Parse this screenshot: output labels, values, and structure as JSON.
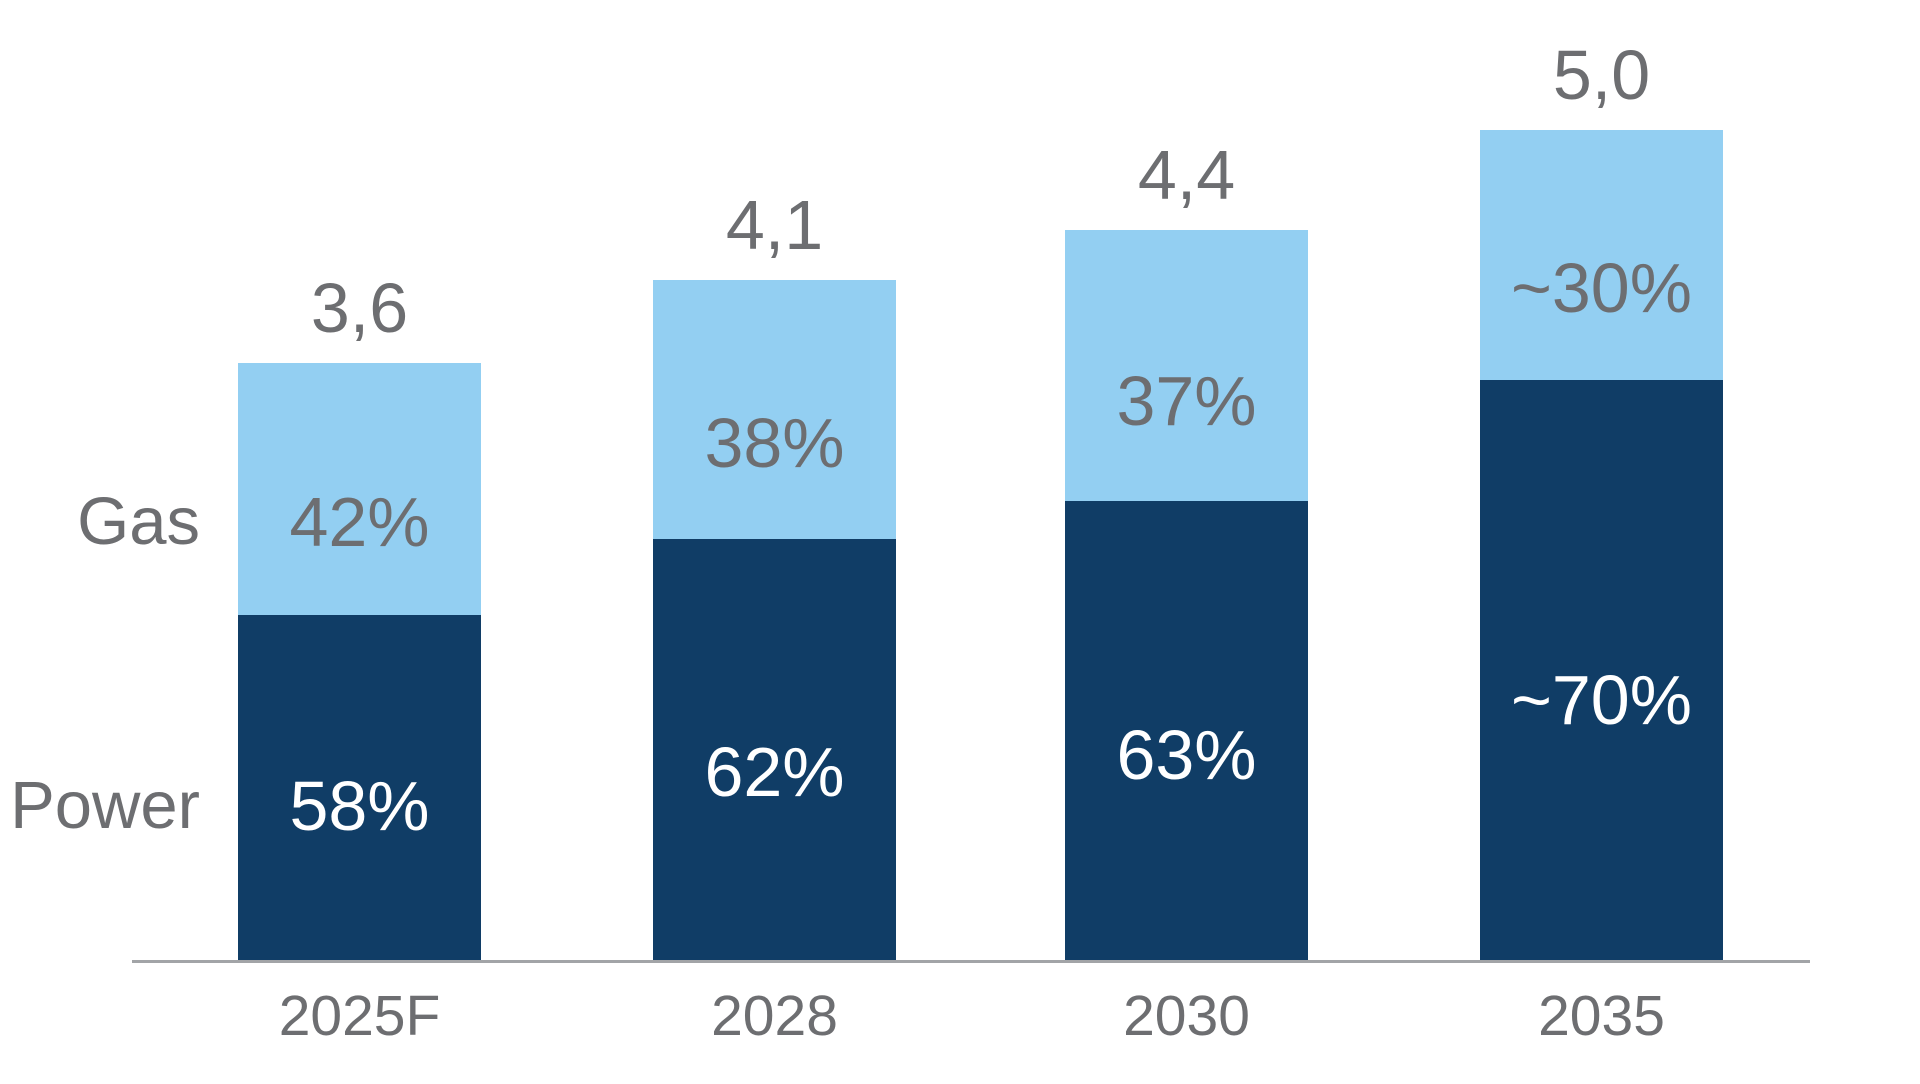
{
  "chart_data": {
    "type": "bar",
    "stacked": true,
    "title": "",
    "xlabel": "",
    "ylabel": "",
    "categories": [
      "2025F",
      "2028",
      "2030",
      "2035"
    ],
    "totals": [
      3.6,
      4.1,
      4.4,
      5.0
    ],
    "total_labels": [
      "3,6",
      "4,1",
      "4,4",
      "5,0"
    ],
    "series": [
      {
        "name": "Power",
        "color": "#103d66",
        "text_color": "#ffffff",
        "shares": [
          0.58,
          0.62,
          0.63,
          0.7
        ],
        "share_labels": [
          "58%",
          "62%",
          "63%",
          "~70%"
        ]
      },
      {
        "name": "Gas",
        "color": "#93cff2",
        "text_color": "#6d6e71",
        "shares": [
          0.42,
          0.38,
          0.37,
          0.3
        ],
        "share_labels": [
          "42%",
          "38%",
          "37%",
          "~30%"
        ]
      }
    ],
    "ylim": [
      0,
      5.0
    ],
    "grid": false,
    "legend_position": "left",
    "value_format": "decimal-comma",
    "axis_color": "#a2a4a7",
    "label_color": "#6d6e71"
  },
  "side_labels": {
    "gas": "Gas",
    "power": "Power"
  }
}
